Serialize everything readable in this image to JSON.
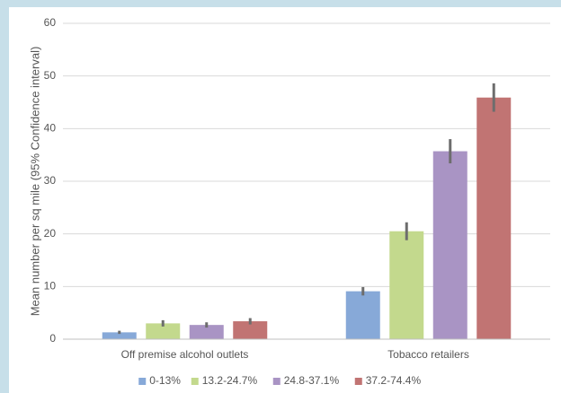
{
  "chart_data": {
    "type": "bar",
    "y_label": "Mean number per sq mile (95% Confidence interval)",
    "categories": [
      "Off premise alcohol outlets",
      "Tobacco retailers"
    ],
    "series": [
      {
        "name": "0-13%",
        "color": "#87a9d8",
        "values": [
          1.3,
          9.1
        ],
        "errors": [
          0.3,
          0.8
        ]
      },
      {
        "name": "13.2-24.7%",
        "color": "#c3d98d",
        "values": [
          3.0,
          20.5
        ],
        "errors": [
          0.6,
          1.7
        ]
      },
      {
        "name": "24.8-37.1%",
        "color": "#a994c4",
        "values": [
          2.7,
          35.7
        ],
        "errors": [
          0.5,
          2.3
        ]
      },
      {
        "name": "37.2-74.4%",
        "color": "#c17473",
        "values": [
          3.4,
          45.9
        ],
        "errors": [
          0.6,
          2.7
        ]
      }
    ],
    "ylim": [
      0,
      60
    ],
    "yticks": [
      0,
      10,
      20,
      30,
      40,
      50,
      60
    ],
    "grid": true,
    "legend": "bottom"
  }
}
